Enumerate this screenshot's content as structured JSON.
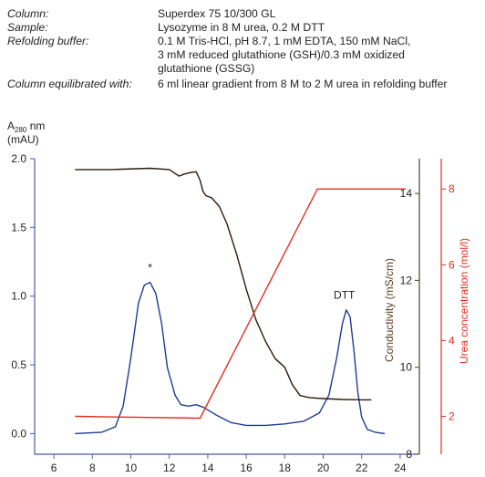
{
  "info": [
    {
      "key": "Column:",
      "lines": [
        "Superdex 75 10/300 GL"
      ]
    },
    {
      "key": "Sample:",
      "lines": [
        "Lysozyme in 8 M urea, 0.2 M DTT"
      ]
    },
    {
      "key": "Refolding buffer:",
      "lines": [
        "0.1 M Tris-HCl, pH 8.7, 1 mM EDTA, 150 mM NaCl,",
        "3 mM reduced glutathione (GSH)/0.3 mM oxidized",
        "glutathione (GSSG)"
      ]
    },
    {
      "key": "Column equilibrated with:",
      "lines": [
        "6 ml linear gradient from 8 M to 2 M urea in refolding buffer"
      ]
    }
  ],
  "chart_data": {
    "type": "line",
    "x_ticks": [
      "6",
      "8",
      "10",
      "12",
      "14",
      "16",
      "18",
      "20",
      "22",
      "24"
    ],
    "xlim": [
      5,
      25
    ],
    "axes": {
      "absorbance": {
        "label_main": "A",
        "label_sub": "280",
        "label_unit": " nm",
        "label_line2": "(mAU)",
        "ylim": [
          -0.15,
          2.0
        ],
        "ticks": [
          "0.0",
          "0.5",
          "1.0",
          "1.5",
          "2.0"
        ],
        "color": "#1f3a93"
      },
      "conductivity": {
        "label": "Conductivity (mS/cm)",
        "ylim": [
          8,
          14.8
        ],
        "ticks": [
          "8",
          "10",
          "12",
          "14"
        ],
        "color": "#5a3d1f"
      },
      "urea": {
        "label": "Urea concentration (mol/l)",
        "ylim": [
          1,
          8.8
        ],
        "ticks": [
          "2",
          "4",
          "6",
          "8"
        ],
        "color": "#e03020"
      }
    },
    "series": [
      {
        "axis": "absorbance",
        "color": "#1f3a93",
        "x": [
          7.1,
          8.5,
          9.2,
          9.6,
          10.0,
          10.4,
          10.7,
          11.0,
          11.3,
          11.6,
          11.9,
          12.3,
          12.6,
          13.0,
          13.4,
          13.8,
          14.5,
          15.2,
          16.0,
          17.0,
          18.0,
          19.0,
          19.8,
          20.3,
          20.7,
          21.0,
          21.2,
          21.4,
          21.6,
          21.8,
          22.0,
          22.3,
          22.7,
          23.2
        ],
        "y": [
          0.0,
          0.01,
          0.05,
          0.2,
          0.55,
          0.95,
          1.08,
          1.1,
          1.02,
          0.8,
          0.48,
          0.28,
          0.21,
          0.2,
          0.21,
          0.19,
          0.13,
          0.08,
          0.06,
          0.06,
          0.07,
          0.09,
          0.15,
          0.28,
          0.55,
          0.8,
          0.9,
          0.85,
          0.6,
          0.3,
          0.12,
          0.03,
          0.01,
          0.0
        ]
      },
      {
        "axis": "conductivity",
        "color": "#2b1a0c",
        "x": [
          7.1,
          9.0,
          11.0,
          12.0,
          12.5,
          12.8,
          13.1,
          13.4,
          13.6,
          13.75,
          13.9,
          14.2,
          14.6,
          15.0,
          15.5,
          16.0,
          16.5,
          17.0,
          17.5,
          18.0,
          18.4,
          18.8,
          19.3,
          20.0,
          21.0,
          22.0,
          22.5
        ],
        "y": [
          14.55,
          14.55,
          14.58,
          14.55,
          14.4,
          14.45,
          14.48,
          14.5,
          14.3,
          14.05,
          13.95,
          13.9,
          13.7,
          13.3,
          12.6,
          11.8,
          11.1,
          10.6,
          10.2,
          10.0,
          9.6,
          9.35,
          9.3,
          9.28,
          9.26,
          9.25,
          9.25
        ]
      },
      {
        "axis": "urea",
        "color": "#e03020",
        "x": [
          7.1,
          13.6,
          19.7,
          24.3
        ],
        "y": [
          2.0,
          1.95,
          8.0,
          8.0
        ]
      }
    ],
    "annotations": [
      {
        "text": "*",
        "x": 11.0,
        "y": 1.18,
        "axis": "absorbance"
      },
      {
        "text": "DTT",
        "x": 21.1,
        "y": 0.98,
        "axis": "absorbance"
      }
    ]
  }
}
